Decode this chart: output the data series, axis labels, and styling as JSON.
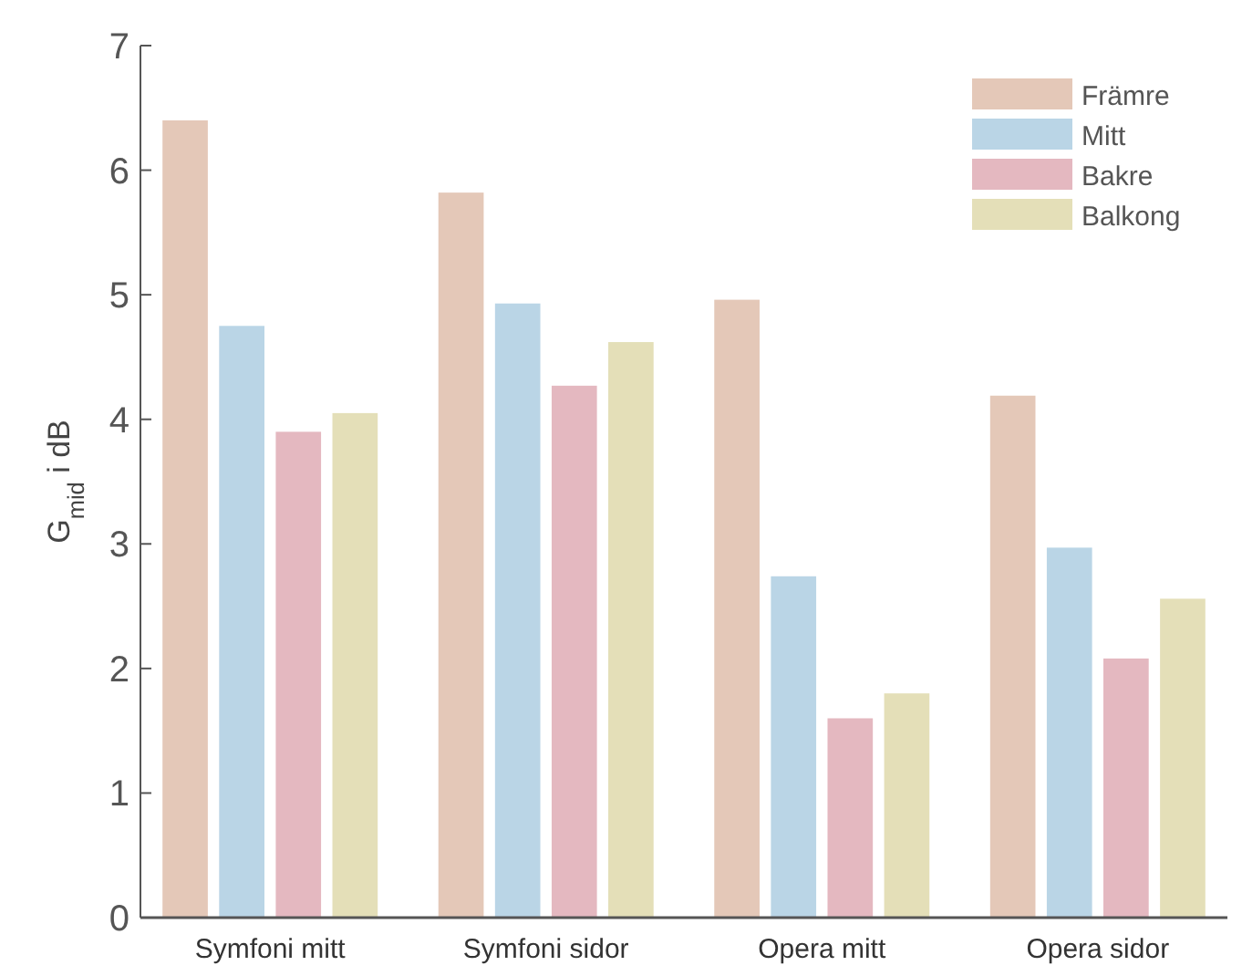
{
  "chart_data": {
    "type": "bar",
    "ylabel": "G$_{mid}$ i dB",
    "categories": [
      "Symfoni mitt",
      "Symfoni sidor",
      "Opera mitt",
      "Opera sidor"
    ],
    "series": [
      {
        "name": "Främre",
        "color": "#e4c8b8",
        "values": [
          6.4,
          5.82,
          4.96,
          4.19
        ]
      },
      {
        "name": "Mitt",
        "color": "#bad5e6",
        "values": [
          4.75,
          4.93,
          2.74,
          2.97
        ]
      },
      {
        "name": "Bakre",
        "color": "#e4b8c0",
        "values": [
          3.9,
          4.27,
          1.6,
          2.08
        ]
      },
      {
        "name": "Balkong",
        "color": "#e4dfb8",
        "values": [
          4.05,
          4.62,
          1.8,
          2.56
        ]
      }
    ],
    "ylim": [
      0,
      7
    ],
    "yticks": [
      0,
      1,
      2,
      3,
      4,
      5,
      6,
      7
    ],
    "grid": false,
    "legend": "top right"
  }
}
